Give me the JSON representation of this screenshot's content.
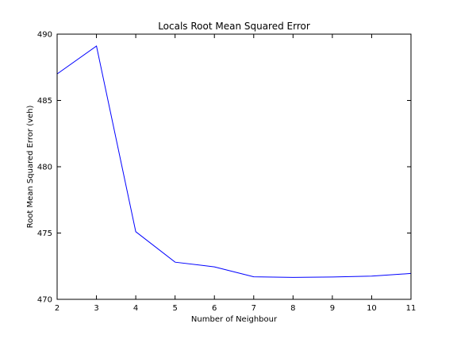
{
  "chart_data": {
    "type": "line",
    "title": "Locals Root Mean Squared Error",
    "xlabel": "Number of Neighbour",
    "ylabel": "Root Mean Squared Error (veh)",
    "xlim": [
      2,
      11
    ],
    "ylim": [
      470,
      490
    ],
    "xticks": [
      2,
      3,
      4,
      5,
      6,
      7,
      8,
      9,
      10,
      11
    ],
    "yticks": [
      470,
      475,
      480,
      485,
      490
    ],
    "grid": false,
    "line_color": "#0000ff",
    "series": [
      {
        "x": [
          2,
          3,
          4,
          5,
          6,
          7,
          8,
          9,
          10,
          11
        ],
        "values": [
          487.0,
          489.1,
          475.1,
          472.8,
          472.45,
          471.7,
          471.65,
          471.68,
          471.75,
          471.95
        ]
      }
    ]
  }
}
